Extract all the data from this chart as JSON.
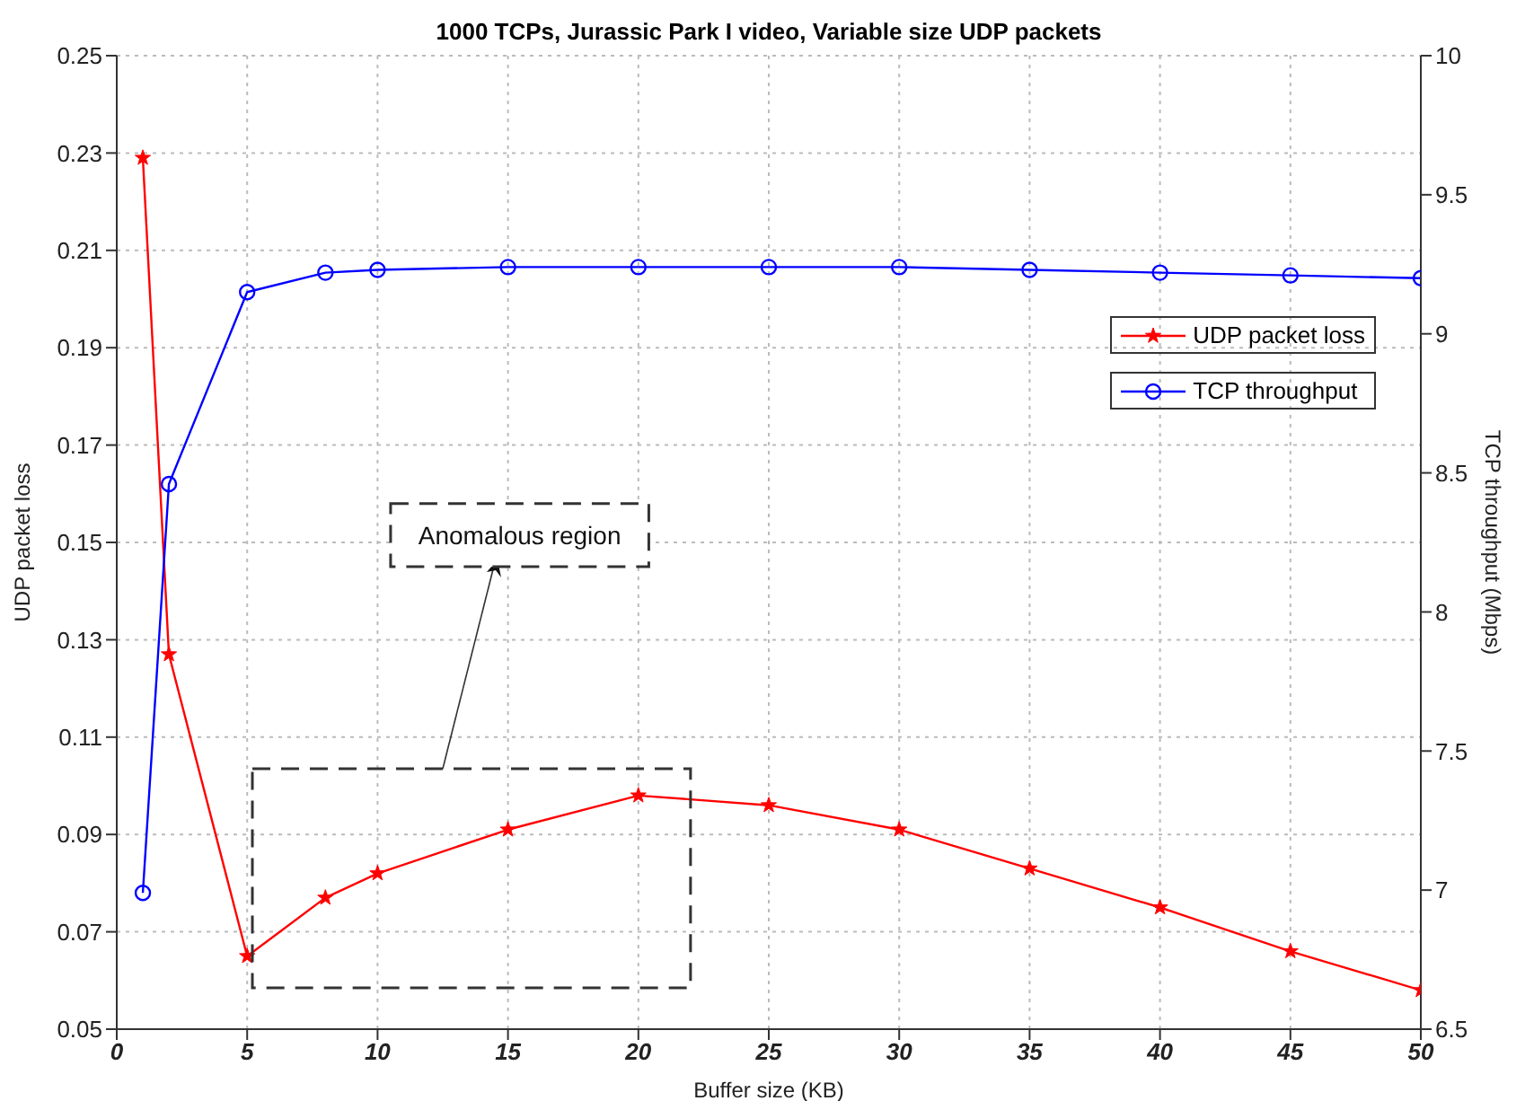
{
  "chart_data": {
    "type": "line",
    "title": "1000 TCPs, Jurassic Park I video, Variable size UDP packets",
    "xlabel": "Buffer size (KB)",
    "ylabel": "UDP packet loss",
    "y2label": "TCP throughput (Mbps)",
    "x": [
      1,
      2,
      5,
      8,
      10,
      15,
      20,
      25,
      30,
      35,
      40,
      45,
      50
    ],
    "series": [
      {
        "name": "UDP packet loss",
        "color": "#ff0000",
        "marker": "star",
        "values": [
          0.229,
          0.127,
          0.065,
          0.077,
          0.082,
          0.091,
          0.098,
          0.096,
          0.091,
          0.083,
          0.075,
          0.066,
          0.058
        ]
      },
      {
        "name": "TCP throughput",
        "color": "#0000ff",
        "marker": "circle",
        "axis": "y2",
        "values": [
          6.99,
          8.46,
          9.15,
          9.22,
          9.23,
          9.24,
          9.24,
          9.24,
          9.24,
          9.23,
          9.22,
          9.21,
          9.2
        ]
      }
    ],
    "xlim": [
      0,
      50
    ],
    "xticks": [
      0,
      5,
      10,
      15,
      20,
      25,
      30,
      35,
      40,
      45,
      50
    ],
    "ylim": [
      0.05,
      0.25
    ],
    "yticks": [
      0.05,
      0.07,
      0.09,
      0.11,
      0.13,
      0.15,
      0.17,
      0.19,
      0.21,
      0.23,
      0.25
    ],
    "y2lim": [
      6.5,
      10
    ],
    "y2ticks": [
      6.5,
      7,
      7.5,
      8,
      8.5,
      9,
      9.5,
      10
    ],
    "grid": true,
    "legend": "top right",
    "line_style": "solid",
    "annotations": [
      "Anomalous region"
    ]
  }
}
